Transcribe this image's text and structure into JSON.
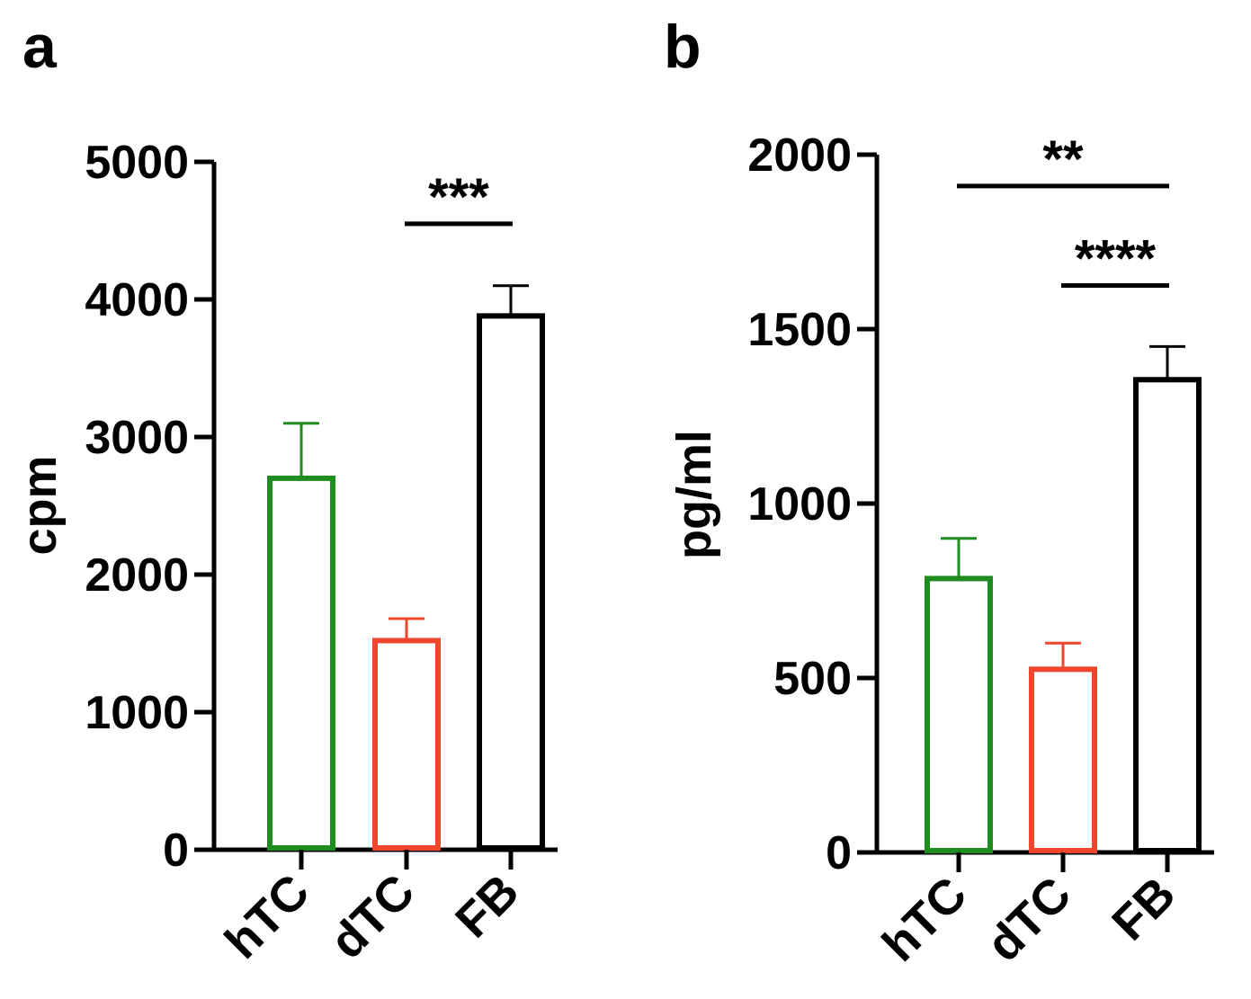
{
  "chart_data": [
    {
      "panel_label": "a",
      "type": "bar",
      "ylabel": "cpm",
      "ylim": [
        0,
        5000
      ],
      "yticks": [
        0,
        1000,
        2000,
        3000,
        4000,
        5000
      ],
      "yticklabels": [
        "0",
        "1000",
        "2000",
        "3000",
        "4000",
        "5000"
      ],
      "categories": [
        "hTC",
        "dTC",
        "FB"
      ],
      "values": [
        2700,
        1520,
        3880
      ],
      "errors": [
        400,
        160,
        220
      ],
      "colors": [
        "#1e8c1e",
        "#f0462d",
        "#000000"
      ],
      "significance": [
        {
          "from": 1,
          "to": 2,
          "label": "***",
          "y": 4550
        }
      ]
    },
    {
      "panel_label": "b",
      "type": "bar",
      "ylabel": "pg/ml",
      "ylim": [
        0,
        2000
      ],
      "yticks": [
        0,
        500,
        1000,
        1500,
        2000
      ],
      "yticklabels": [
        "0",
        "500",
        "1000",
        "1500",
        "2000"
      ],
      "categories": [
        "hTC",
        "dTC",
        "FB"
      ],
      "values": [
        785,
        525,
        1355
      ],
      "errors": [
        115,
        75,
        95
      ],
      "colors": [
        "#1e8c1e",
        "#f0462d",
        "#000000"
      ],
      "significance": [
        {
          "from": 0,
          "to": 2,
          "label": "**",
          "y": 1910
        },
        {
          "from": 1,
          "to": 2,
          "label": "****",
          "y": 1625
        }
      ]
    }
  ]
}
